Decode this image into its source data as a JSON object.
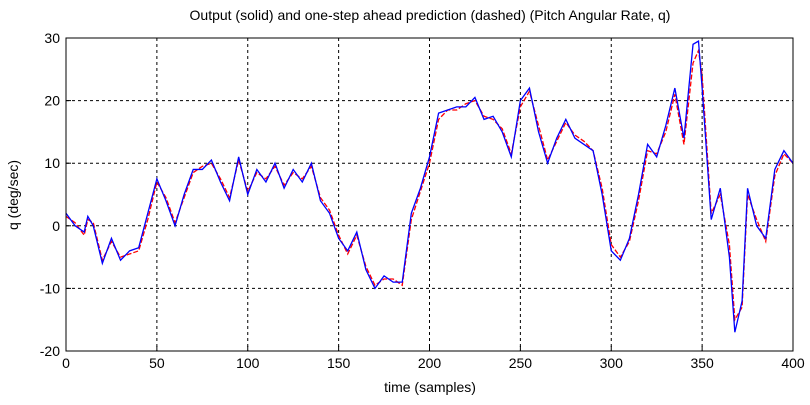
{
  "chart_data": {
    "type": "line",
    "title": "Output (solid) and one-step ahead prediction (dashed) (Pitch Angular Rate, q)",
    "x_label": "time (samples)",
    "y_label": "q (deg/sec)",
    "x": [
      0,
      5,
      10,
      12,
      15,
      20,
      25,
      30,
      35,
      40,
      45,
      50,
      55,
      60,
      65,
      70,
      75,
      80,
      85,
      90,
      95,
      100,
      105,
      110,
      115,
      120,
      125,
      130,
      135,
      140,
      145,
      150,
      155,
      160,
      165,
      170,
      175,
      180,
      185,
      190,
      195,
      200,
      205,
      210,
      215,
      220,
      225,
      230,
      235,
      240,
      245,
      250,
      255,
      260,
      265,
      270,
      275,
      280,
      285,
      290,
      295,
      300,
      305,
      310,
      315,
      320,
      325,
      330,
      335,
      340,
      345,
      348,
      350,
      355,
      360,
      365,
      368,
      372,
      375,
      380,
      385,
      390,
      395,
      400
    ],
    "series": [
      {
        "color": "#0000ff",
        "dash": "solid",
        "values": [
          2,
          0,
          -1,
          1.5,
          0,
          -6,
          -2,
          -5.5,
          -4,
          -3.5,
          2,
          7.5,
          4,
          0,
          5,
          9,
          9,
          10.5,
          7,
          4,
          11,
          5,
          9,
          7,
          10,
          6,
          9,
          7,
          10,
          4,
          2,
          -2,
          -4,
          -1,
          -7,
          -10,
          -8,
          -9,
          -9,
          2,
          6,
          11,
          18,
          18.5,
          19,
          19,
          20.5,
          17,
          17.5,
          15,
          11,
          20,
          22,
          15,
          10,
          14,
          17,
          14,
          13,
          12,
          5,
          -4,
          -5.5,
          -2,
          5,
          13,
          11,
          16,
          22,
          14,
          29,
          29.5,
          22,
          1,
          6,
          -5,
          -17,
          -12,
          6,
          0,
          -2,
          9,
          12,
          10
        ]
      },
      {
        "color": "#ff0000",
        "dash": "dashed",
        "values": [
          1.5,
          0.5,
          -1.5,
          1,
          0.5,
          -5.5,
          -2.5,
          -5,
          -4.5,
          -4,
          1,
          7,
          4.5,
          0.5,
          4.5,
          8.5,
          9.5,
          10,
          7.5,
          4.5,
          10.5,
          5.5,
          8.5,
          7.5,
          9.5,
          6.5,
          8.5,
          7.5,
          9.5,
          4.5,
          2.5,
          -1.5,
          -4.5,
          -1.5,
          -6.5,
          -9.5,
          -8.5,
          -8.5,
          -9.5,
          1,
          5.5,
          10,
          17,
          18.5,
          18.5,
          19.5,
          20,
          17.5,
          17,
          15.5,
          11.5,
          19,
          21.5,
          16,
          10.5,
          13.5,
          16.5,
          14.5,
          13.5,
          12,
          6,
          -3,
          -5,
          -2.5,
          4,
          12,
          11.5,
          15,
          21,
          13,
          26,
          28,
          24,
          2,
          5,
          -3,
          -15,
          -13,
          5,
          1,
          -2.5,
          8,
          11.5,
          10
        ]
      }
    ],
    "xlim": [
      0,
      400
    ],
    "xticks": [
      0,
      50,
      100,
      150,
      200,
      250,
      300,
      350,
      400
    ],
    "ylim": [
      -20,
      30
    ],
    "yticks": [
      -20,
      -10,
      0,
      10,
      20,
      30
    ],
    "grid": true
  }
}
